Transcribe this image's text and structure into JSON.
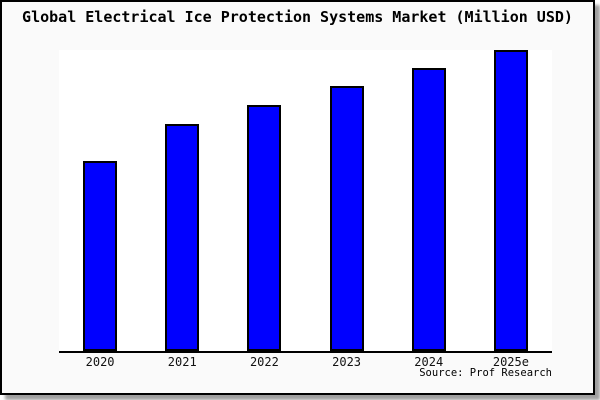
{
  "chart_data": {
    "type": "bar",
    "title": "Global Electrical Ice Protection Systems Market (Million USD)",
    "categories": [
      "2020",
      "2021",
      "2022",
      "2023",
      "2024",
      "2025e"
    ],
    "values": [
      63,
      75.5,
      81.8,
      88.2,
      94,
      100
    ],
    "values_note": "y-axis has no tick labels or gridlines in the chart; values are relative bar heights indexed to 2025e = 100",
    "xlabel": "",
    "ylabel": "",
    "ylim": [
      0,
      100
    ],
    "grid": false,
    "legend": false,
    "bar_color": "#0000ff",
    "bar_border_color": "#000000"
  },
  "source": {
    "text": "Source: Prof Research"
  }
}
